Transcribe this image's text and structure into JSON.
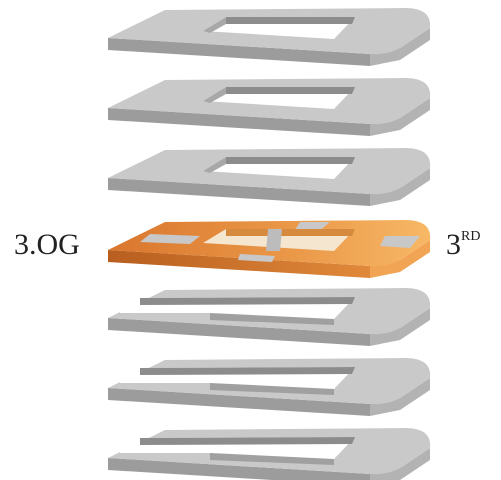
{
  "labels": {
    "left": "3.OG",
    "right_number": "3",
    "right_suffix": "RD"
  }
}
